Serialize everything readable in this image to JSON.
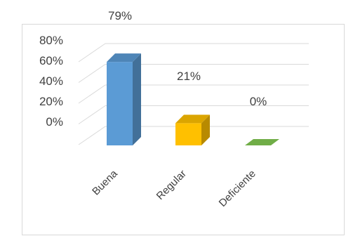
{
  "chart_data": {
    "type": "bar",
    "style": "3d-column",
    "categories": [
      "Buena",
      "Regular",
      "Deficiente"
    ],
    "values": [
      79,
      21,
      0
    ],
    "data_labels": [
      "79%",
      "21%",
      "0%"
    ],
    "colors": [
      "#5B9BD5",
      "#FFC000",
      "#70AD47"
    ],
    "y_tick_labels": [
      "80%",
      "60%",
      "40%",
      "20%",
      "0%"
    ],
    "ylim": [
      0,
      80
    ],
    "grid": true,
    "legend": "none"
  }
}
